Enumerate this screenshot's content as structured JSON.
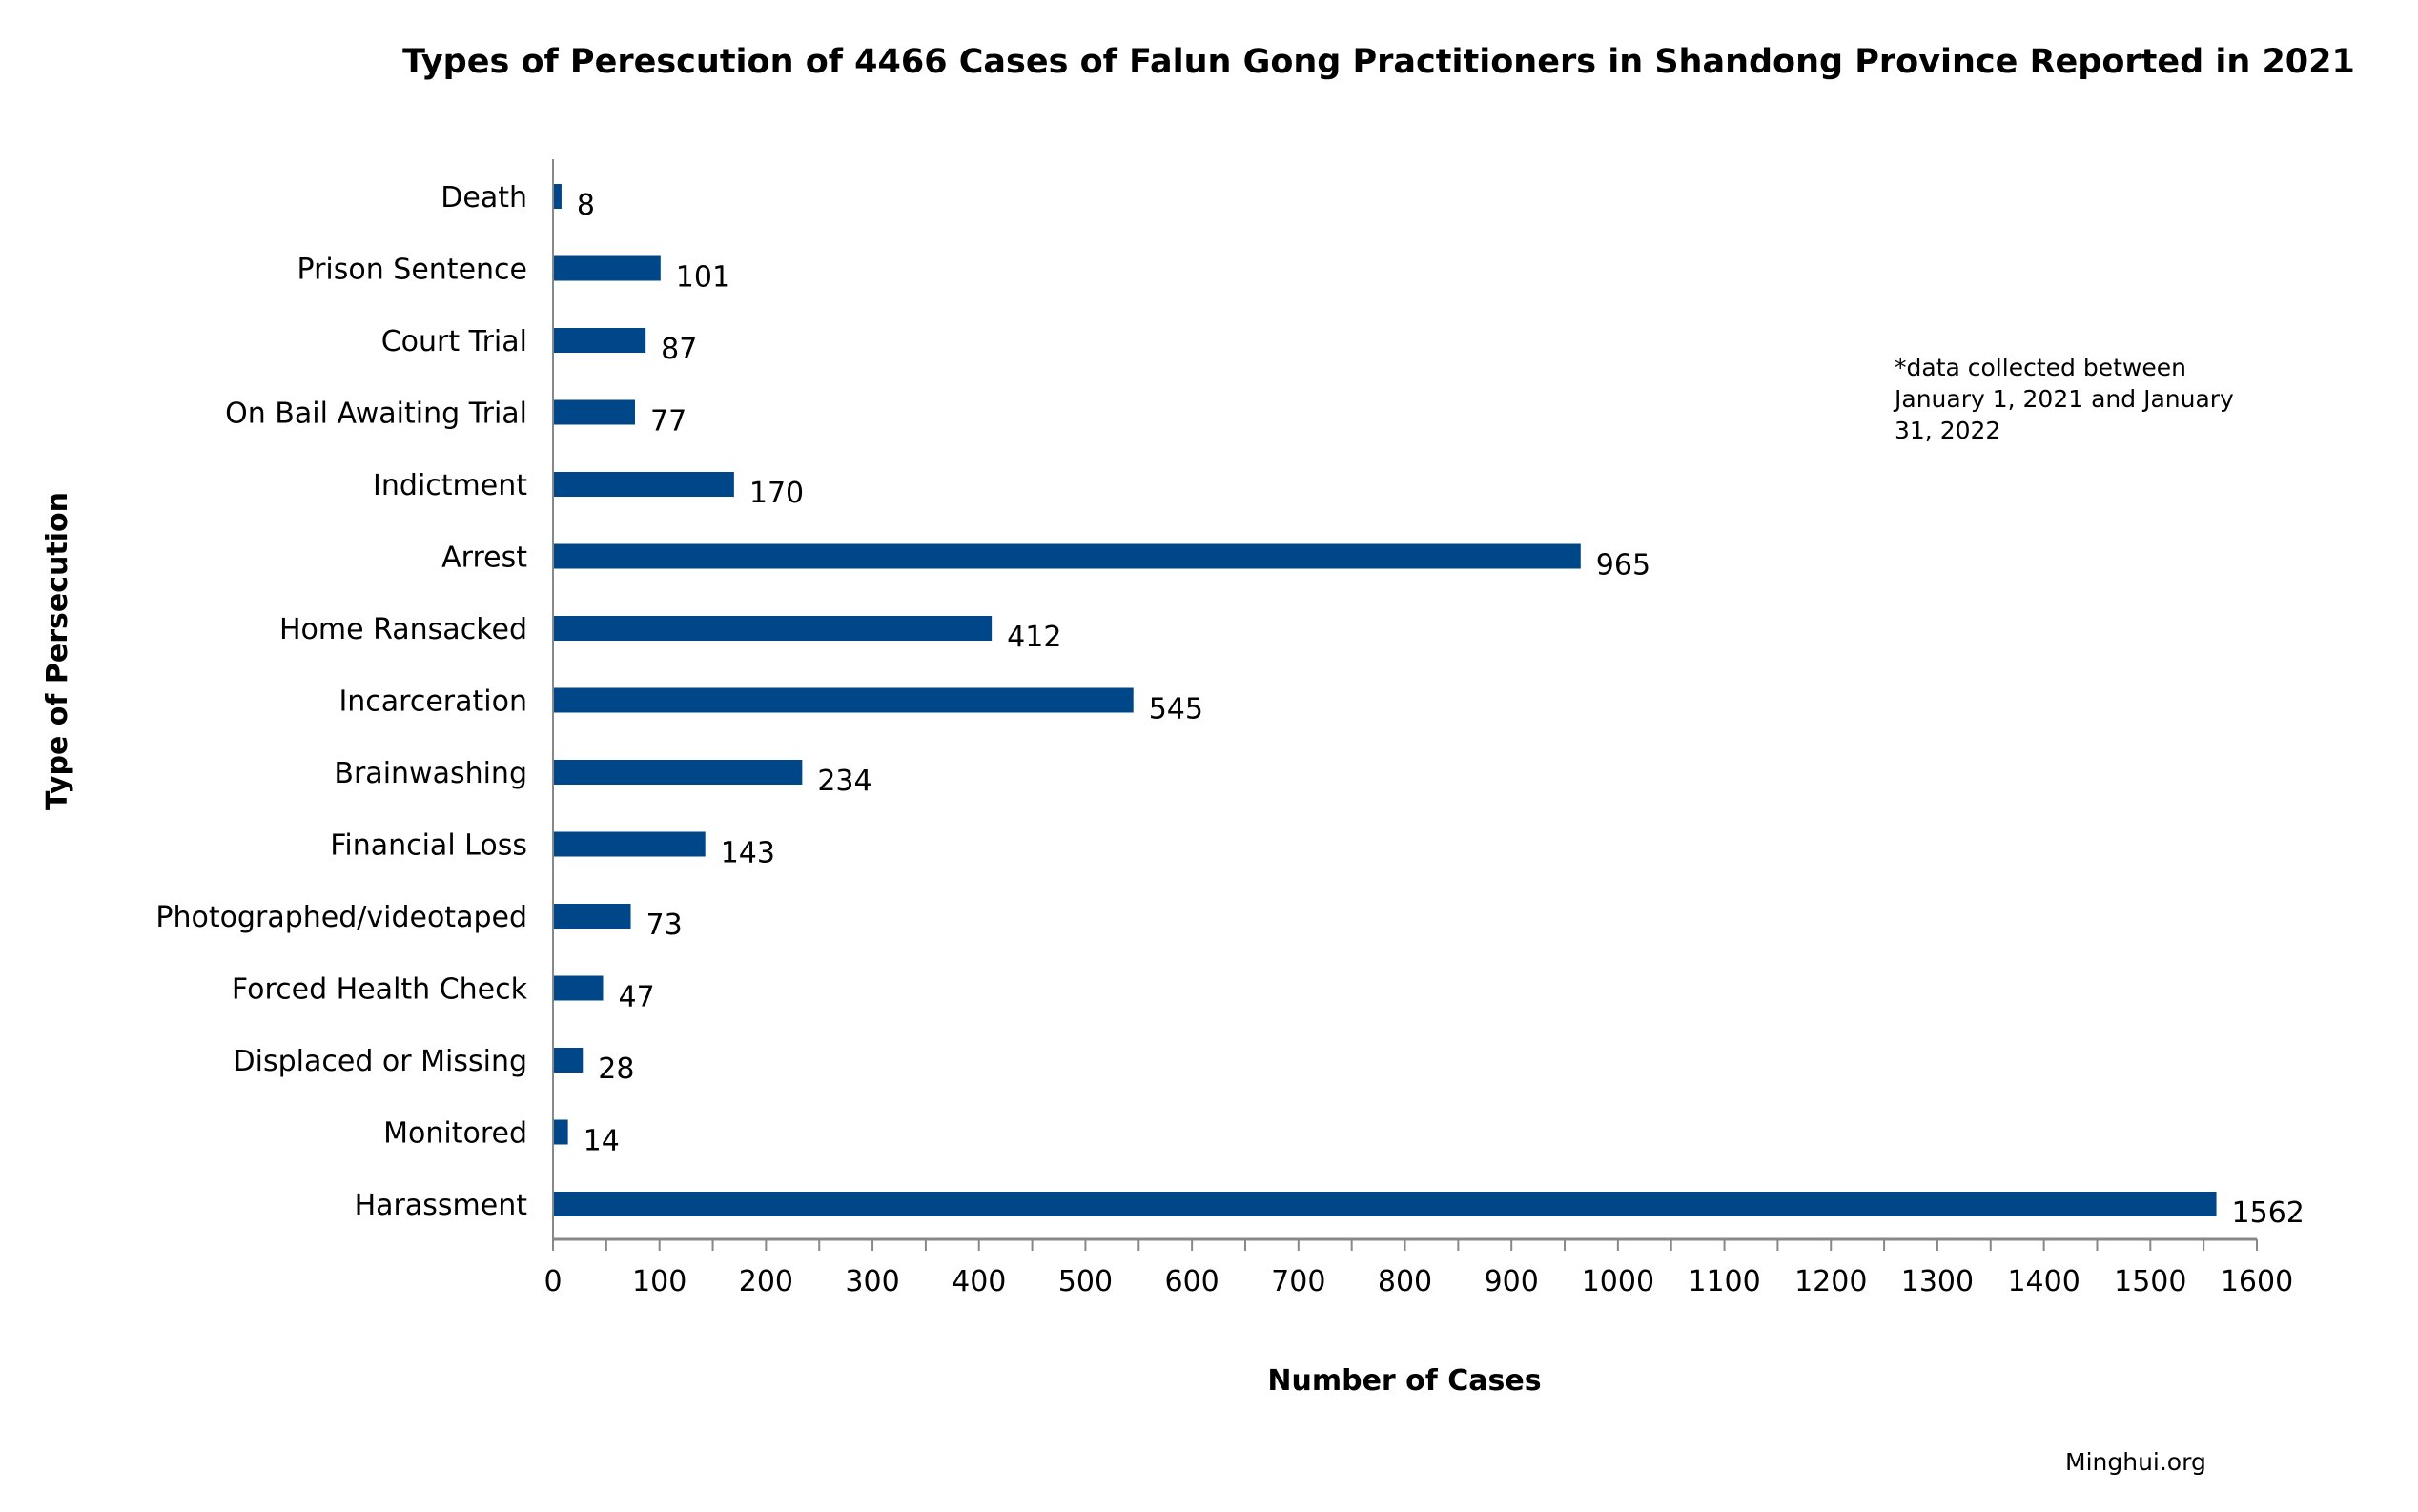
{
  "chart_data": {
    "type": "bar",
    "orientation": "horizontal",
    "title": "Types of Perescution of 4466 Cases of Falun Gong Practitioners in Shandong Province Reported in 2021",
    "xlabel": "Number of Cases",
    "ylabel": "Type of Persecution",
    "categories": [
      "Death",
      "Prison Sentence",
      "Court Trial",
      "On Bail Awaiting Trial",
      "Indictment",
      "Arrest",
      "Home Ransacked",
      "Incarceration",
      "Brainwashing",
      "Financial Loss",
      "Photographed/videotaped",
      "Forced Health Check",
      "Displaced or Missing",
      "Monitored",
      "Harassment"
    ],
    "values": [
      8,
      101,
      87,
      77,
      170,
      965,
      412,
      545,
      234,
      143,
      73,
      47,
      28,
      14,
      1562
    ],
    "xlim": [
      0,
      1600
    ],
    "xticks": [
      0,
      100,
      200,
      300,
      400,
      500,
      600,
      700,
      800,
      900,
      1000,
      1100,
      1200,
      1300,
      1400,
      1500,
      1600
    ],
    "grid": false,
    "data_labels": true,
    "bar_color": "#00478A",
    "annotation": [
      "*data collected between",
      "January 1, 2021 and January",
      "31, 2022"
    ],
    "source": "Minghui.org"
  }
}
